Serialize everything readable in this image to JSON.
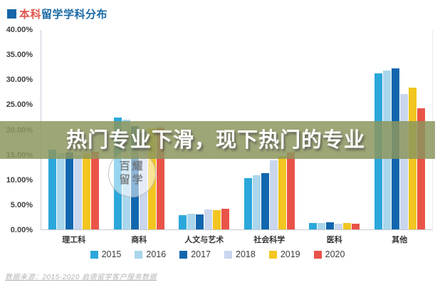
{
  "header": {
    "title_prefix": "本科",
    "title_rest": "留学学科分布",
    "accent_red": "#e2574c",
    "accent_blue": "#1a6aa5",
    "bullet_color": "#1565a8"
  },
  "overlay": {
    "text": "热门专业下滑，现下热门的专业"
  },
  "watermark": {
    "line1": "百耀",
    "line2": "留学"
  },
  "footer": {
    "source": "数据来源：2015-2020 启德留学客户服务数据"
  },
  "chart_data": {
    "type": "bar",
    "title": "本科留学学科分布",
    "categories": [
      "理工科",
      "商科",
      "人文与艺术",
      "社会科学",
      "医科",
      "其他"
    ],
    "series": [
      {
        "name": "2015",
        "color": "#2ba7db",
        "values": [
          16.0,
          22.5,
          2.9,
          10.3,
          1.3,
          31.3
        ]
      },
      {
        "name": "2016",
        "color": "#a9d6ec",
        "values": [
          15.3,
          22.0,
          3.2,
          10.8,
          1.3,
          31.8
        ]
      },
      {
        "name": "2017",
        "color": "#1166ae",
        "values": [
          15.5,
          20.7,
          3.0,
          11.3,
          1.5,
          32.3
        ]
      },
      {
        "name": "2018",
        "color": "#c9d6ee",
        "values": [
          15.0,
          20.0,
          4.0,
          13.8,
          1.1,
          27.1
        ]
      },
      {
        "name": "2019",
        "color": "#f2c520",
        "values": [
          15.3,
          20.3,
          3.9,
          14.7,
          1.3,
          28.4
        ]
      },
      {
        "name": "2020",
        "color": "#ea5348",
        "values": [
          15.6,
          20.5,
          4.1,
          15.5,
          1.2,
          24.3
        ]
      }
    ],
    "ylim": [
      0,
      40
    ],
    "ytick_step": 5,
    "yticks": [
      "40.00%",
      "35.00%",
      "30.00%",
      "25.00%",
      "20.00%",
      "15.00%",
      "10.00%",
      "5.00%",
      "0.00%"
    ],
    "grid": false,
    "legend_position": "bottom"
  }
}
